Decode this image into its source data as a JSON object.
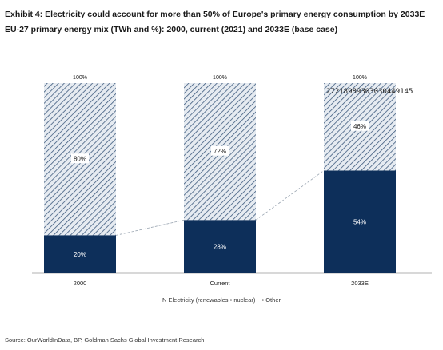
{
  "header": {
    "title": "Exhibit 4: Electricity could account for more than 50% of Europe's primary energy consumption by 2033E",
    "subtitle": "EU-27 primary energy mix (TWh and %): 2000, current (2021) and 2033E (base case)"
  },
  "source": "Source: OurWorldInData, BP, Goldman Sachs Global Investment Research",
  "stray_text": "27218989303030449145",
  "chart_data": {
    "type": "bar",
    "stacked": true,
    "percent_stacked": true,
    "categories": [
      "2000",
      "Current",
      "2033E"
    ],
    "series": [
      {
        "name": "Electricity (renewables + nuclear)",
        "values": [
          20,
          28,
          54
        ],
        "labels": [
          "20%",
          "28%",
          "54%"
        ],
        "color": "#0d2f5a"
      },
      {
        "name": "Other",
        "values": [
          80,
          72,
          46
        ],
        "labels": [
          "80%",
          "72%",
          "46%"
        ],
        "color": "#dfe5ec",
        "pattern": "hatched"
      }
    ],
    "total_labels": [
      "100%",
      "100%",
      "100%"
    ],
    "ylim": [
      0,
      100
    ],
    "grid": false,
    "connector_lines": "dashed",
    "legend": {
      "placement": "bottom",
      "items": [
        "N Electricity (renewables • nuclear)",
        "• Other"
      ]
    }
  }
}
